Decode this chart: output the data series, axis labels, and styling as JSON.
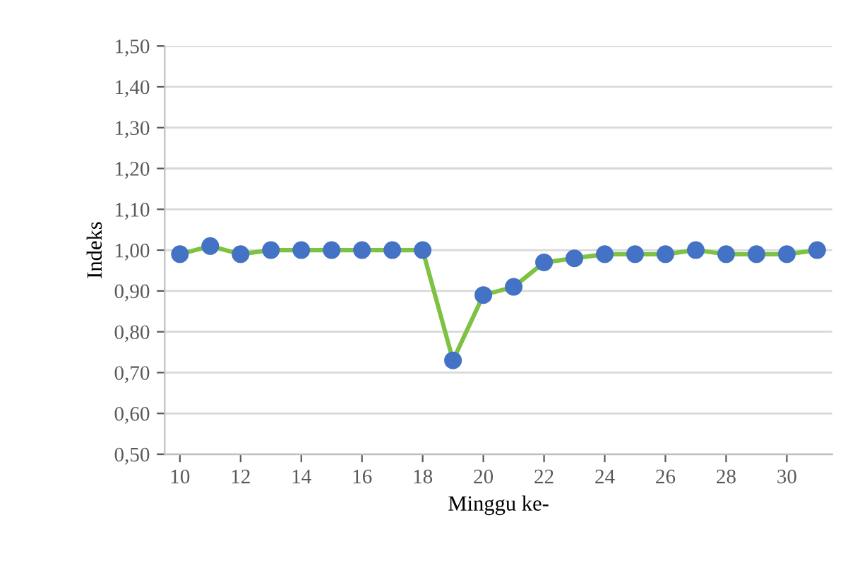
{
  "chart_data": {
    "type": "line",
    "xlabel": "Minggu ke-",
    "ylabel": "Indeks",
    "x": [
      10,
      11,
      12,
      13,
      14,
      15,
      16,
      17,
      18,
      19,
      20,
      21,
      22,
      23,
      24,
      25,
      26,
      27,
      28,
      29,
      30,
      31
    ],
    "series": [
      {
        "color": "#7dc242",
        "colors": [
          "#4472c4",
          "#4472c4",
          "#4472c4",
          "#4472c4",
          "#4472c4",
          "#4472c4",
          "#4472c4",
          "#4472c4",
          "#4472c4",
          "#4472c4",
          "#4472c4",
          "#4472c4",
          "#4472c4",
          "#4472c4",
          "#4472c4",
          "#4472c4",
          "#4472c4",
          "#4472c4",
          "#4472c4",
          "#4472c4",
          "#4472c4",
          "#4472c4"
        ],
        "values": [
          0.99,
          1.01,
          0.99,
          1.0,
          1.0,
          1.0,
          1.0,
          1.0,
          1.0,
          0.73,
          0.89,
          0.91,
          0.97,
          0.98,
          0.99,
          0.99,
          0.99,
          1.0,
          0.99,
          0.99,
          0.99,
          1.0
        ]
      }
    ],
    "xlim": [
      9.5,
      31.5
    ],
    "xticks": [
      10,
      12,
      14,
      16,
      18,
      20,
      22,
      24,
      26,
      28,
      30
    ],
    "ylim": [
      0.5,
      1.5
    ],
    "yticks": [
      {
        "value": 0.5,
        "label": "0,50"
      },
      {
        "value": 0.6,
        "label": "0,60"
      },
      {
        "value": 0.7,
        "label": "0,70"
      },
      {
        "value": 0.8,
        "label": "0,80"
      },
      {
        "value": 0.9,
        "label": "0,90"
      },
      {
        "value": 1.0,
        "label": "1,00"
      },
      {
        "value": 1.1,
        "label": "1,10"
      },
      {
        "value": 1.2,
        "label": "1,20"
      },
      {
        "value": 1.3,
        "label": "1,30"
      },
      {
        "value": 1.4,
        "label": "1,40"
      },
      {
        "value": 1.5,
        "label": "1,50"
      }
    ],
    "grid": "y",
    "marker": "circle",
    "line_style": "solid",
    "legend": false
  }
}
